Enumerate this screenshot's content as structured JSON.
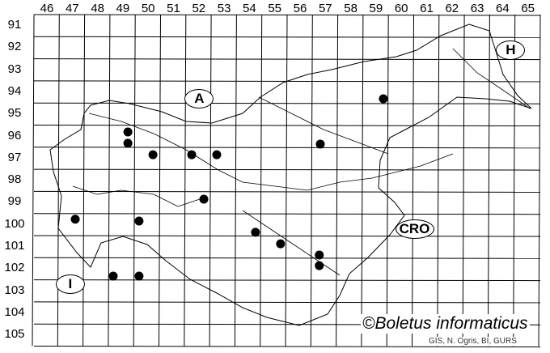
{
  "grid": {
    "columns": [
      "46",
      "47",
      "48",
      "49",
      "50",
      "51",
      "52",
      "53",
      "54",
      "55",
      "56",
      "57",
      "58",
      "59",
      "60",
      "61",
      "62",
      "63",
      "64",
      "65"
    ],
    "rows": [
      "91",
      "92",
      "93",
      "94",
      "95",
      "96",
      "97",
      "98",
      "99",
      "100",
      "101",
      "102",
      "103",
      "104",
      "105"
    ]
  },
  "regions": [
    {
      "label": "A",
      "col": 52.5,
      "row": 94.8
    },
    {
      "label": "H",
      "col": 64.8,
      "row": 92.6
    },
    {
      "label": "CRO",
      "col": 61.0,
      "row": 100.7
    },
    {
      "label": "I",
      "col": 47.4,
      "row": 103.2
    }
  ],
  "records": [
    {
      "col": 49.71,
      "row": 96.31
    },
    {
      "col": 49.71,
      "row": 96.82
    },
    {
      "col": 50.7,
      "row": 97.34
    },
    {
      "col": 52.23,
      "row": 97.34
    },
    {
      "col": 53.22,
      "row": 97.34
    },
    {
      "col": 59.8,
      "row": 94.81
    },
    {
      "col": 57.31,
      "row": 96.86
    },
    {
      "col": 52.71,
      "row": 99.35
    },
    {
      "col": 47.63,
      "row": 100.26
    },
    {
      "col": 50.15,
      "row": 100.34
    },
    {
      "col": 54.75,
      "row": 100.85
    },
    {
      "col": 55.74,
      "row": 101.37
    },
    {
      "col": 57.27,
      "row": 101.88
    },
    {
      "col": 57.27,
      "row": 102.36
    },
    {
      "col": 49.13,
      "row": 102.83
    },
    {
      "col": 50.15,
      "row": 102.83
    }
  ],
  "credits": {
    "copyright": "©Boletus informaticus",
    "source": "GIS, N. Ogris, BI, GURS"
  },
  "colors": {
    "dot": "#000000",
    "lines": "#000000"
  }
}
